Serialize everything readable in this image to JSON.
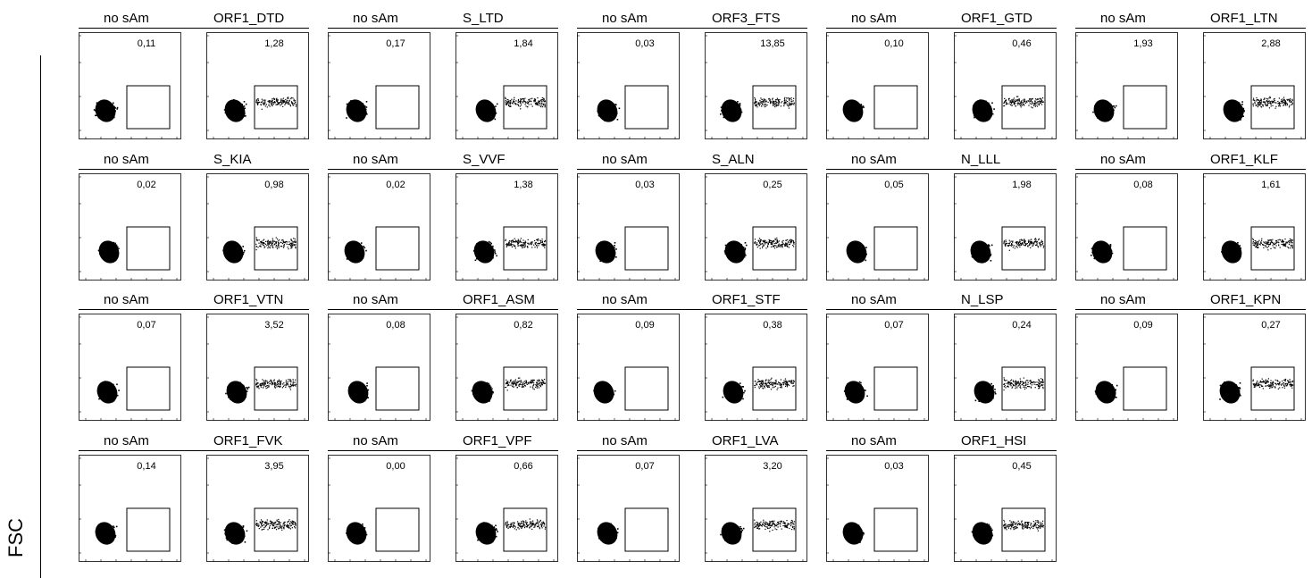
{
  "y_axis_label": "FSC",
  "chart_data": {
    "type": "scatter",
    "ylabel": "FSC",
    "rows": [
      [
        {
          "control": {
            "label": "no sAm",
            "pct": "0,11"
          },
          "sample": {
            "label": "ORF1_DTD",
            "pct": "1,28"
          }
        },
        {
          "control": {
            "label": "no sAm",
            "pct": "0,17"
          },
          "sample": {
            "label": "S_LTD",
            "pct": "1,84"
          }
        },
        {
          "control": {
            "label": "no sAm",
            "pct": "0,03"
          },
          "sample": {
            "label": "ORF3_FTS",
            "pct": "13,85"
          }
        },
        {
          "control": {
            "label": "no sAm",
            "pct": "0,10"
          },
          "sample": {
            "label": "ORF1_GTD",
            "pct": "0,46"
          }
        },
        {
          "control": {
            "label": "no sAm",
            "pct": "1,93"
          },
          "sample": {
            "label": "ORF1_LTN",
            "pct": "2,88"
          }
        }
      ],
      [
        {
          "control": {
            "label": "no sAm",
            "pct": "0,02"
          },
          "sample": {
            "label": "S_KIA",
            "pct": "0,98"
          }
        },
        {
          "control": {
            "label": "no sAm",
            "pct": "0,02"
          },
          "sample": {
            "label": "S_VVF",
            "pct": "1,38"
          }
        },
        {
          "control": {
            "label": "no sAm",
            "pct": "0,03"
          },
          "sample": {
            "label": "S_ALN",
            "pct": "0,25"
          }
        },
        {
          "control": {
            "label": "no sAm",
            "pct": "0,05"
          },
          "sample": {
            "label": "N_LLL",
            "pct": "1,98"
          }
        },
        {
          "control": {
            "label": "no sAm",
            "pct": "0,08"
          },
          "sample": {
            "label": "ORF1_KLF",
            "pct": "1,61"
          }
        }
      ],
      [
        {
          "control": {
            "label": "no sAm",
            "pct": "0,07"
          },
          "sample": {
            "label": "ORF1_VTN",
            "pct": "3,52"
          }
        },
        {
          "control": {
            "label": "no sAm",
            "pct": "0,08"
          },
          "sample": {
            "label": "ORF1_ASM",
            "pct": "0,82"
          }
        },
        {
          "control": {
            "label": "no sAm",
            "pct": "0,09"
          },
          "sample": {
            "label": "ORF1_STF",
            "pct": "0,38"
          }
        },
        {
          "control": {
            "label": "no sAm",
            "pct": "0,07"
          },
          "sample": {
            "label": "N_LSP",
            "pct": "0,24"
          }
        },
        {
          "control": {
            "label": "no sAm",
            "pct": "0,09"
          },
          "sample": {
            "label": "ORF1_KPN",
            "pct": "0,27"
          }
        }
      ],
      [
        {
          "control": {
            "label": "no sAm",
            "pct": "0,14"
          },
          "sample": {
            "label": "ORF1_FVK",
            "pct": "3,95"
          }
        },
        {
          "control": {
            "label": "no sAm",
            "pct": "0,00"
          },
          "sample": {
            "label": "ORF1_VPF",
            "pct": "0,66"
          }
        },
        {
          "control": {
            "label": "no sAm",
            "pct": "0,07"
          },
          "sample": {
            "label": "ORF1_LVA",
            "pct": "3,20"
          }
        },
        {
          "control": {
            "label": "no sAm",
            "pct": "0,03"
          },
          "sample": {
            "label": "ORF1_HSI",
            "pct": "0,45"
          }
        }
      ]
    ]
  }
}
